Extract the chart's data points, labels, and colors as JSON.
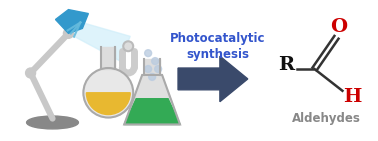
{
  "bg_color": "#ffffff",
  "arrow_color": "#3a4a6b",
  "text_photocatalytic": "Photocatalytic",
  "text_synthesis": "synthesis",
  "text_color_main": "#3355cc",
  "text_aldehydes": "Aldehydes",
  "text_aldehydes_color": "#888888",
  "lamp_body_color": "#c8c8c8",
  "lamp_head_color": "#3399cc",
  "lamp_base_color": "#888888",
  "flask1_liquid_color": "#e8b830",
  "flask2_liquid_color": "#33aa55",
  "aldehyde_C_color": "#111111",
  "aldehyde_O_color": "#cc0000",
  "aldehyde_H_color": "#cc0000",
  "aldehyde_R_color": "#111111",
  "beam_color": "#d0eefa",
  "figsize": [
    3.78,
    1.41
  ],
  "dpi": 100
}
